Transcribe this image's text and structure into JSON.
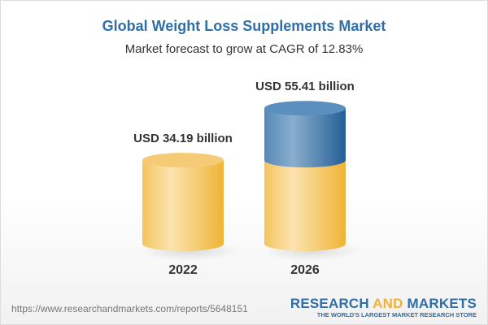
{
  "title": "Global Weight Loss Supplements Market",
  "subtitle": "Market forecast to grow at CAGR of 12.83%",
  "chart_data": {
    "type": "bar",
    "style": "3d-cylinder",
    "title": "Global Weight Loss Supplements Market",
    "subtitle": "Market forecast to grow at CAGR of 12.83%",
    "categories": [
      "2022",
      "2026"
    ],
    "values": [
      34.19,
      55.41
    ],
    "data_labels": [
      "USD 34.19 billion",
      "USD 55.41 billion"
    ],
    "unit": "USD billion",
    "grid": false,
    "colors": {
      "base": "#f2c462",
      "growth": "#3f7fb2"
    }
  },
  "footer": {
    "url": "https://www.researchandmarkets.com/reports/5648151",
    "logo_part1": "RESEARCH ",
    "logo_part2": "AND",
    "logo_part3": " MARKETS",
    "logo_tagline": "THE WORLD'S LARGEST MARKET RESEARCH STORE"
  }
}
